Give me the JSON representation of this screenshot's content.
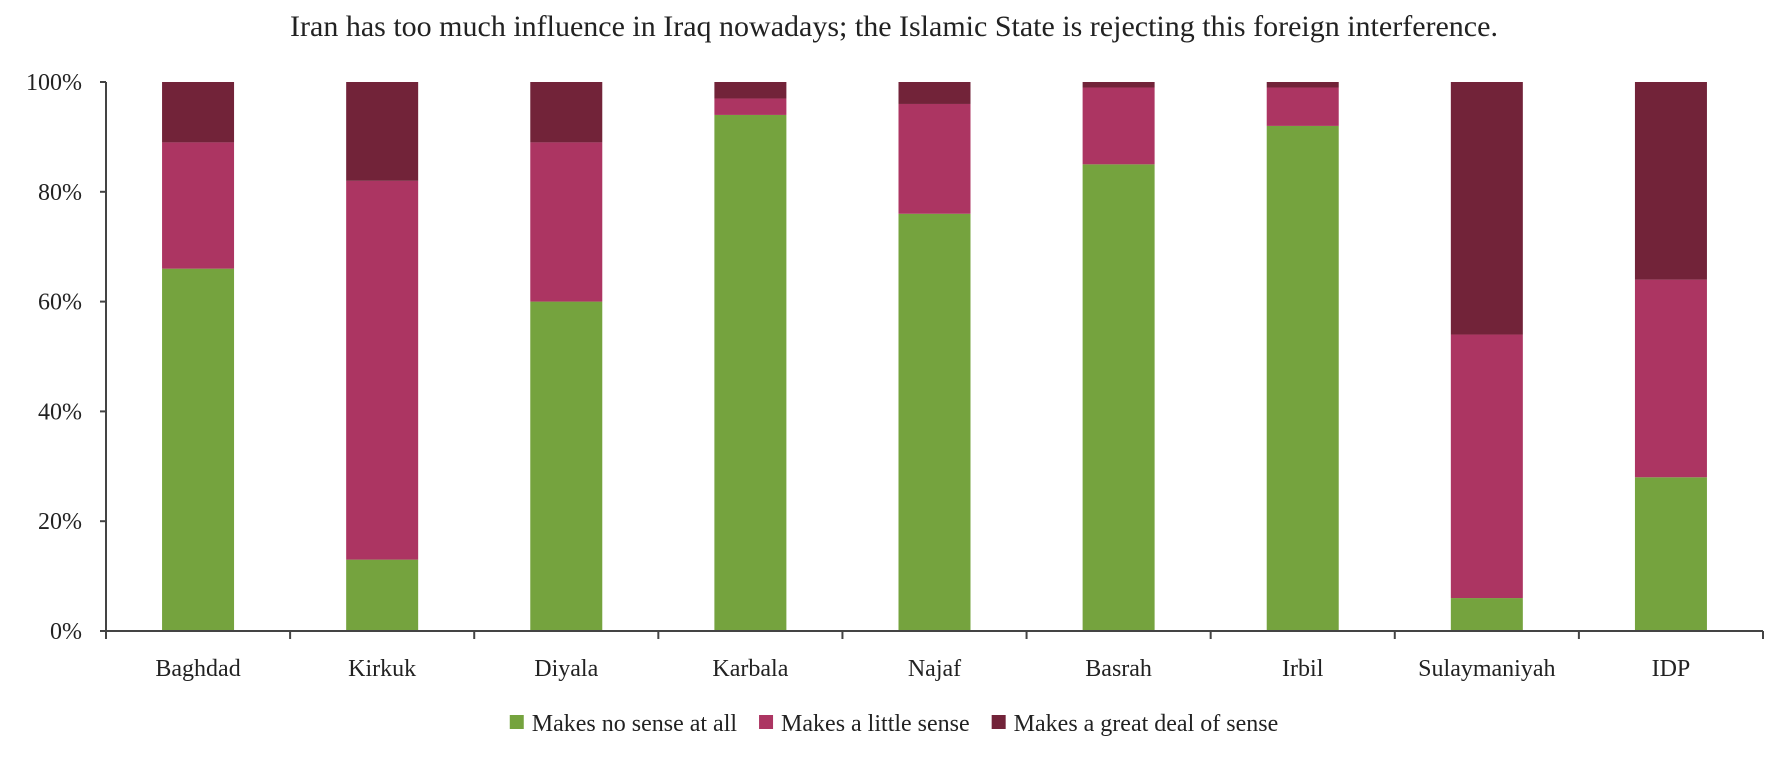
{
  "chart_data": {
    "type": "bar",
    "stacked": true,
    "title": "Iran has too much influence in Iraq nowadays; the Islamic State is rejecting this foreign interference.",
    "categories": [
      "Baghdad",
      "Kirkuk",
      "Diyala",
      "Karbala",
      "Najaf",
      "Basrah",
      "Irbil",
      "Sulaymaniyah",
      "IDP"
    ],
    "series": [
      {
        "name": "Makes no sense at all",
        "color": "#75a33e",
        "values": [
          66,
          13,
          60,
          94,
          76,
          85,
          92,
          6,
          28
        ]
      },
      {
        "name": "Makes a little sense",
        "color": "#ac3562",
        "values": [
          23,
          69,
          29,
          3,
          20,
          14,
          7,
          48,
          36
        ]
      },
      {
        "name": "Makes a great deal of sense",
        "color": "#722339",
        "values": [
          11,
          18,
          11,
          3,
          4,
          1,
          1,
          46,
          36
        ]
      }
    ],
    "ylim": [
      0,
      100
    ],
    "yticks": [
      "0%",
      "20%",
      "40%",
      "60%",
      "80%",
      "100%"
    ],
    "grid": false,
    "legend_position": "bottom"
  }
}
